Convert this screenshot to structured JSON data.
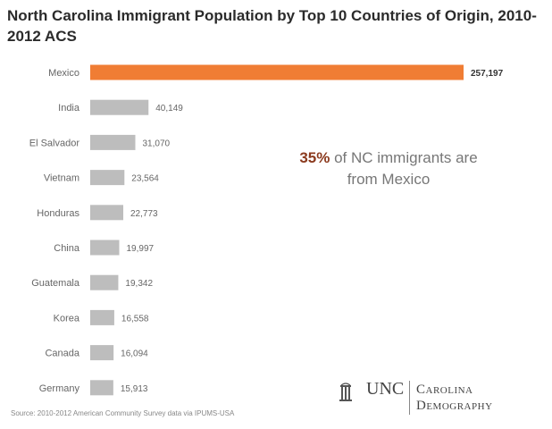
{
  "title": "North Carolina Immigrant Population by Top 10 Countries of Origin, 2010-2012 ACS",
  "callout": {
    "pct": "35%",
    "line1_rest": " of NC immigrants are",
    "line2": "from Mexico"
  },
  "source": "Source: 2010-2012 American Community Survey data via IPUMS-USA",
  "logo": {
    "unc": "UNC",
    "carolina": "Carolina",
    "demography": "Demography"
  },
  "colors": {
    "highlight": "#f07d34",
    "bar": "#bdbdbd"
  },
  "chart_data": {
    "type": "bar",
    "orientation": "horizontal",
    "categories": [
      "Mexico",
      "India",
      "El Salvador",
      "Vietnam",
      "Honduras",
      "China",
      "Guatemala",
      "Korea",
      "Canada",
      "Germany"
    ],
    "values": [
      257197,
      40149,
      31070,
      23564,
      22773,
      19997,
      19342,
      16558,
      16094,
      15913
    ],
    "value_labels": [
      "257,197",
      "40,149",
      "31,070",
      "23,564",
      "22,773",
      "19,997",
      "19,342",
      "16,558",
      "16,094",
      "15,913"
    ],
    "highlight_index": 0
  }
}
